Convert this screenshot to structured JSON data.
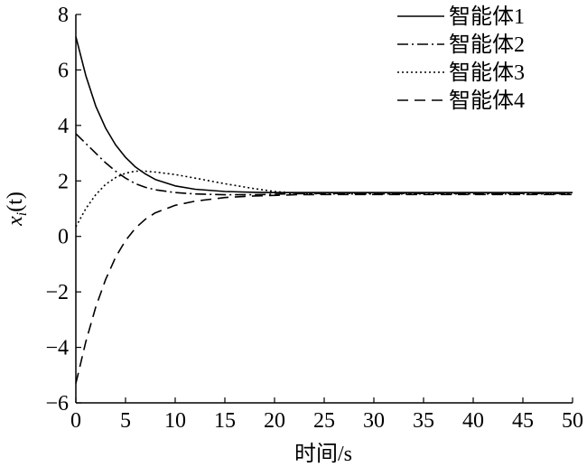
{
  "chart_data": {
    "type": "line",
    "xlabel": "时间/s",
    "ylabel_main": "x",
    "ylabel_sub": "i",
    "ylabel_tail": "(t)",
    "xlim": [
      0,
      50
    ],
    "ylim": [
      -6,
      8
    ],
    "xticks": [
      0,
      5,
      10,
      15,
      20,
      25,
      30,
      35,
      40,
      45,
      50
    ],
    "yticks": [
      -6,
      -4,
      -2,
      0,
      2,
      4,
      6,
      8
    ],
    "xtick_labels": [
      "0",
      "5",
      "10",
      "15",
      "20",
      "25",
      "30",
      "35",
      "40",
      "45",
      "50"
    ],
    "ytick_labels": [
      "−6",
      "−4",
      "−2",
      "0",
      "2",
      "4",
      "6",
      "8"
    ],
    "grid": false,
    "legend_position": "top-right",
    "series": [
      {
        "name": "智能体1",
        "style": "solid",
        "x": [
          0,
          1,
          2,
          3,
          4,
          5,
          6,
          7,
          8,
          10,
          12,
          15,
          18,
          20,
          22,
          25,
          30,
          35,
          40,
          45,
          50
        ],
        "y": [
          7.2,
          5.8,
          4.7,
          3.9,
          3.3,
          2.85,
          2.5,
          2.25,
          2.05,
          1.82,
          1.7,
          1.62,
          1.59,
          1.58,
          1.58,
          1.58,
          1.58,
          1.58,
          1.58,
          1.58,
          1.58
        ]
      },
      {
        "name": "智能体2",
        "style": "dashdot",
        "x": [
          0,
          1,
          2,
          3,
          4,
          5,
          6,
          7,
          8,
          10,
          12,
          15,
          18,
          20,
          22,
          25,
          30,
          35,
          40,
          45,
          50
        ],
        "y": [
          3.7,
          3.35,
          3.0,
          2.65,
          2.35,
          2.1,
          1.9,
          1.77,
          1.68,
          1.58,
          1.53,
          1.5,
          1.5,
          1.52,
          1.54,
          1.55,
          1.55,
          1.55,
          1.55,
          1.55,
          1.55
        ]
      },
      {
        "name": "智能体3",
        "style": "dotted",
        "x": [
          0,
          1,
          2,
          3,
          4,
          5,
          6,
          7,
          8,
          10,
          12,
          15,
          18,
          20,
          22,
          25,
          30,
          35,
          40,
          45,
          50
        ],
        "y": [
          0.35,
          1.0,
          1.5,
          1.88,
          2.12,
          2.28,
          2.35,
          2.35,
          2.32,
          2.23,
          2.1,
          1.9,
          1.72,
          1.62,
          1.56,
          1.53,
          1.53,
          1.53,
          1.53,
          1.53,
          1.53
        ]
      },
      {
        "name": "智能体4",
        "style": "dashed",
        "x": [
          0,
          1,
          2,
          3,
          4,
          5,
          6,
          7,
          8,
          10,
          12,
          15,
          18,
          20,
          22,
          25,
          30,
          35,
          40,
          45,
          50
        ],
        "y": [
          -5.3,
          -3.8,
          -2.55,
          -1.55,
          -0.75,
          -0.15,
          0.3,
          0.62,
          0.85,
          1.12,
          1.27,
          1.4,
          1.46,
          1.48,
          1.5,
          1.51,
          1.51,
          1.51,
          1.51,
          1.51,
          1.51
        ]
      }
    ]
  }
}
